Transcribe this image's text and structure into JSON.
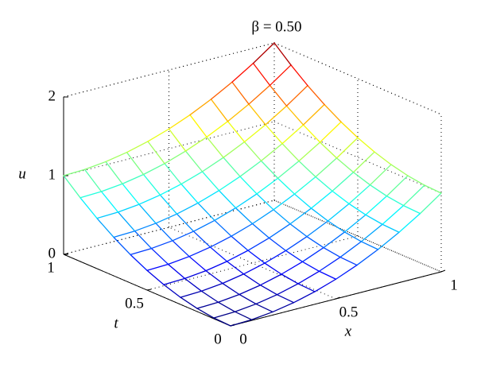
{
  "chart_data": {
    "type": "surface",
    "title": "β = 0.50",
    "x_label": "x",
    "t_label": "t",
    "z_label": "u",
    "x": [
      0,
      0.1,
      0.2,
      0.3,
      0.4,
      0.5,
      0.6,
      0.7,
      0.8,
      0.9,
      1
    ],
    "t": [
      0,
      0.1,
      0.2,
      0.3,
      0.4,
      0.5,
      0.6,
      0.7,
      0.8,
      0.9,
      1
    ],
    "values": [
      [
        0,
        0.01,
        0.04,
        0.09,
        0.16,
        0.25,
        0.36,
        0.49,
        0.64,
        0.81,
        1
      ],
      [
        0.01,
        0.02,
        0.05,
        0.1,
        0.17,
        0.26,
        0.37,
        0.5,
        0.65,
        0.82,
        1.01
      ],
      [
        0.04,
        0.05,
        0.08,
        0.13,
        0.2,
        0.29,
        0.4,
        0.53,
        0.68,
        0.85,
        1.04
      ],
      [
        0.09,
        0.1,
        0.13,
        0.18,
        0.25,
        0.34,
        0.45,
        0.58,
        0.73,
        0.9,
        1.09
      ],
      [
        0.16,
        0.17,
        0.2,
        0.25,
        0.32,
        0.41,
        0.52,
        0.65,
        0.8,
        0.97,
        1.16
      ],
      [
        0.25,
        0.26,
        0.29,
        0.34,
        0.41,
        0.5,
        0.61,
        0.74,
        0.89,
        1.06,
        1.25
      ],
      [
        0.36,
        0.37,
        0.4,
        0.45,
        0.52,
        0.61,
        0.72,
        0.85,
        1,
        1.17,
        1.36
      ],
      [
        0.49,
        0.5,
        0.53,
        0.58,
        0.65,
        0.74,
        0.85,
        0.98,
        1.13,
        1.3,
        1.49
      ],
      [
        0.64,
        0.65,
        0.68,
        0.73,
        0.8,
        0.89,
        1,
        1.13,
        1.28,
        1.45,
        1.64
      ],
      [
        0.81,
        0.82,
        0.85,
        0.9,
        0.97,
        1.06,
        1.17,
        1.3,
        1.45,
        1.62,
        1.81
      ],
      [
        1,
        1.01,
        1.04,
        1.09,
        1.16,
        1.25,
        1.36,
        1.49,
        1.64,
        1.81,
        2
      ]
    ],
    "xlim": [
      0,
      1
    ],
    "xticks": [
      0,
      0.5,
      1
    ],
    "tlim": [
      0,
      1
    ],
    "tticks": [
      0,
      0.5,
      1
    ],
    "zlim": [
      0,
      2
    ],
    "zticks": [
      0,
      1,
      2
    ],
    "colormap": "jet",
    "grid": true
  }
}
